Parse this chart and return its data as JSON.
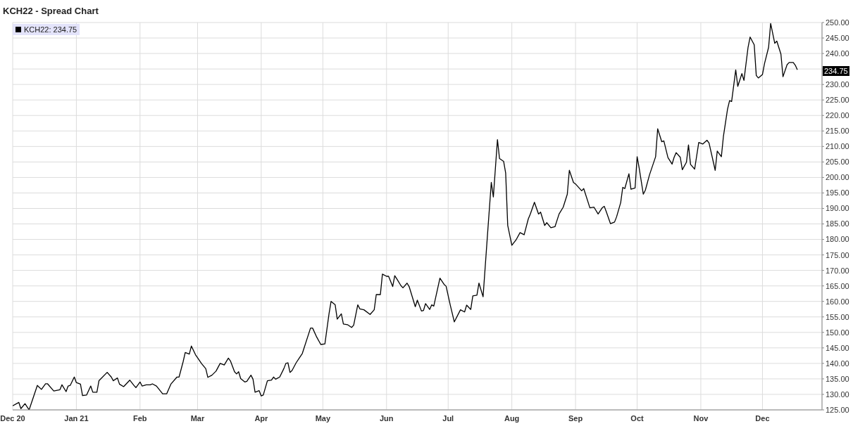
{
  "chart_data": {
    "type": "line",
    "title": "KCH22 - Spread Chart",
    "xlim": [
      "2020-12-01",
      "2021-12-30"
    ],
    "xticks": [
      {
        "value": "2020-12-01",
        "label": "Dec 20"
      },
      {
        "value": "2021-01-01",
        "label": "Jan 21"
      },
      {
        "value": "2021-02-01",
        "label": "Feb"
      },
      {
        "value": "2021-03-01",
        "label": "Mar"
      },
      {
        "value": "2021-04-01",
        "label": "Apr"
      },
      {
        "value": "2021-05-01",
        "label": "May"
      },
      {
        "value": "2021-06-01",
        "label": "Jun"
      },
      {
        "value": "2021-07-01",
        "label": "Jul"
      },
      {
        "value": "2021-08-01",
        "label": "Aug"
      },
      {
        "value": "2021-09-01",
        "label": "Sep"
      },
      {
        "value": "2021-10-01",
        "label": "Oct"
      },
      {
        "value": "2021-11-01",
        "label": "Nov"
      },
      {
        "value": "2021-12-01",
        "label": "Dec"
      }
    ],
    "ylim": [
      125,
      250
    ],
    "yticks": [
      {
        "value": 125,
        "label": "125.00"
      },
      {
        "value": 130,
        "label": "130.00"
      },
      {
        "value": 135,
        "label": "135.00"
      },
      {
        "value": 140,
        "label": "140.00"
      },
      {
        "value": 145,
        "label": "145.00"
      },
      {
        "value": 150,
        "label": "150.00"
      },
      {
        "value": 155,
        "label": "155.00"
      },
      {
        "value": 160,
        "label": "160.00"
      },
      {
        "value": 165,
        "label": "165.00"
      },
      {
        "value": 170,
        "label": "170.00"
      },
      {
        "value": 175,
        "label": "175.00"
      },
      {
        "value": 180,
        "label": "180.00"
      },
      {
        "value": 185,
        "label": "185.00"
      },
      {
        "value": 190,
        "label": "190.00"
      },
      {
        "value": 195,
        "label": "195.00"
      },
      {
        "value": 200,
        "label": "200.00"
      },
      {
        "value": 205,
        "label": "205.00"
      },
      {
        "value": 210,
        "label": "210.00"
      },
      {
        "value": 215,
        "label": "215.00"
      },
      {
        "value": 220,
        "label": "220.00"
      },
      {
        "value": 225,
        "label": "225.00"
      },
      {
        "value": 230,
        "label": "230.00"
      },
      {
        "value": 235,
        "label": null
      },
      {
        "value": 240,
        "label": "240.00"
      },
      {
        "value": 245,
        "label": "245.00"
      },
      {
        "value": 250,
        "label": "250.00"
      }
    ],
    "grid": true,
    "legend": "top left",
    "marker": "none",
    "line_style": "solid",
    "annotations": [
      "234.75"
    ],
    "series": [
      {
        "name": "KCH22: 234.75",
        "color": "#000000",
        "x": [
          "2020-12-01",
          "2020-12-04",
          "2020-12-05",
          "2020-12-07",
          "2020-12-09",
          "2020-12-13",
          "2020-12-15",
          "2020-12-17",
          "2020-12-18",
          "2020-12-21",
          "2020-12-24",
          "2020-12-25",
          "2020-12-27",
          "2020-12-28",
          "2020-12-29",
          "2020-12-31",
          "2021-01-01",
          "2021-01-03",
          "2021-01-04",
          "2021-01-06",
          "2021-01-08",
          "2021-01-09",
          "2021-01-11",
          "2021-01-12",
          "2021-01-16",
          "2021-01-18",
          "2021-01-19",
          "2021-01-21",
          "2021-01-22",
          "2021-01-24",
          "2021-01-27",
          "2021-01-29",
          "2021-01-30",
          "2021-02-01",
          "2021-02-02",
          "2021-02-04",
          "2021-02-06",
          "2021-02-07",
          "2021-02-09",
          "2021-02-12",
          "2021-02-14",
          "2021-02-16",
          "2021-02-19",
          "2021-02-20",
          "2021-02-22",
          "2021-02-23",
          "2021-02-25",
          "2021-02-26",
          "2021-02-28",
          "2021-03-03",
          "2021-03-05",
          "2021-03-06",
          "2021-03-08",
          "2021-03-10",
          "2021-03-12",
          "2021-03-14",
          "2021-03-16",
          "2021-03-17",
          "2021-03-19",
          "2021-03-20",
          "2021-03-21",
          "2021-03-22",
          "2021-03-24",
          "2021-03-25",
          "2021-03-27",
          "2021-03-28",
          "2021-03-29",
          "2021-03-31",
          "2021-04-01",
          "2021-04-02",
          "2021-04-04",
          "2021-04-06",
          "2021-04-07",
          "2021-04-08",
          "2021-04-10",
          "2021-04-12",
          "2021-04-13",
          "2021-04-14",
          "2021-04-15",
          "2021-04-16",
          "2021-04-18",
          "2021-04-21",
          "2021-04-25",
          "2021-04-26",
          "2021-04-28",
          "2021-04-30",
          "2021-05-02",
          "2021-05-04",
          "2021-05-05",
          "2021-05-07",
          "2021-05-08",
          "2021-05-10",
          "2021-05-11",
          "2021-05-13",
          "2021-05-15",
          "2021-05-16",
          "2021-05-18",
          "2021-05-19",
          "2021-05-21",
          "2021-05-24",
          "2021-05-26",
          "2021-05-27",
          "2021-05-29",
          "2021-05-30",
          "2021-06-01",
          "2021-06-02",
          "2021-06-04",
          "2021-06-05",
          "2021-06-06",
          "2021-06-08",
          "2021-06-09",
          "2021-06-11",
          "2021-06-12",
          "2021-06-15",
          "2021-06-16",
          "2021-06-18",
          "2021-06-19",
          "2021-06-20",
          "2021-06-22",
          "2021-06-23",
          "2021-06-24",
          "2021-06-27",
          "2021-06-29",
          "2021-06-30",
          "2021-07-02",
          "2021-07-04",
          "2021-07-07",
          "2021-07-09",
          "2021-07-10",
          "2021-07-12",
          "2021-07-13",
          "2021-07-15",
          "2021-07-16",
          "2021-07-18",
          "2021-07-20",
          "2021-07-22",
          "2021-07-23",
          "2021-07-25",
          "2021-07-26",
          "2021-07-28",
          "2021-07-29",
          "2021-07-30",
          "2021-08-01",
          "2021-08-03",
          "2021-08-05",
          "2021-08-07",
          "2021-08-09",
          "2021-08-10",
          "2021-08-12",
          "2021-08-14",
          "2021-08-15",
          "2021-08-17",
          "2021-08-18",
          "2021-08-20",
          "2021-08-22",
          "2021-08-24",
          "2021-08-26",
          "2021-08-28",
          "2021-08-29",
          "2021-08-31",
          "2021-09-01",
          "2021-09-04",
          "2021-09-05",
          "2021-09-08",
          "2021-09-10",
          "2021-09-12",
          "2021-09-14",
          "2021-09-15",
          "2021-09-16",
          "2021-09-18",
          "2021-09-20",
          "2021-09-21",
          "2021-09-23",
          "2021-09-24",
          "2021-09-25",
          "2021-09-27",
          "2021-09-28",
          "2021-09-30",
          "2021-10-01",
          "2021-10-02",
          "2021-10-04",
          "2021-10-05",
          "2021-10-07",
          "2021-10-10",
          "2021-10-11",
          "2021-10-13",
          "2021-10-14",
          "2021-10-16",
          "2021-10-18",
          "2021-10-19",
          "2021-10-20",
          "2021-10-22",
          "2021-10-23",
          "2021-10-25",
          "2021-10-26",
          "2021-10-27",
          "2021-10-29",
          "2021-10-31",
          "2021-11-02",
          "2021-11-04",
          "2021-11-05",
          "2021-11-08",
          "2021-11-09",
          "2021-11-11",
          "2021-11-12",
          "2021-11-14",
          "2021-11-15",
          "2021-11-16",
          "2021-11-18",
          "2021-11-19",
          "2021-11-21",
          "2021-11-22",
          "2021-11-24",
          "2021-11-25",
          "2021-11-27",
          "2021-11-28",
          "2021-11-29",
          "2021-12-01",
          "2021-12-02",
          "2021-12-04",
          "2021-12-05",
          "2021-12-07",
          "2021-12-08",
          "2021-12-10",
          "2021-12-11",
          "2021-12-13",
          "2021-12-14",
          "2021-12-16",
          "2021-12-17",
          "2021-12-18"
        ],
        "values": [
          126.3,
          127.4,
          125.4,
          127.0,
          125.0,
          132.9,
          131.6,
          133.4,
          133.4,
          131.1,
          131.5,
          133.1,
          130.9,
          132.7,
          132.9,
          135.6,
          133.8,
          133.3,
          129.6,
          129.8,
          132.7,
          130.7,
          130.7,
          134.4,
          137.1,
          135.6,
          134.4,
          135.3,
          133.3,
          132.5,
          134.6,
          132.9,
          132.2,
          134.0,
          132.7,
          133.1,
          133.1,
          133.4,
          132.7,
          130.2,
          130.2,
          133.3,
          135.6,
          135.6,
          140.6,
          143.5,
          143.0,
          145.6,
          142.8,
          139.9,
          138.3,
          135.5,
          136.2,
          137.5,
          140.0,
          139.5,
          141.7,
          140.8,
          137.3,
          136.6,
          137.3,
          135.1,
          134.0,
          134.2,
          136.2,
          134.9,
          130.7,
          131.2,
          129.5,
          129.8,
          134.4,
          134.6,
          135.6,
          134.9,
          135.6,
          138.3,
          140.0,
          140.2,
          137.1,
          137.7,
          140.2,
          143.2,
          151.4,
          151.4,
          148.5,
          146.1,
          146.3,
          156.0,
          160.0,
          158.9,
          154.3,
          156.0,
          152.7,
          152.5,
          151.6,
          152.3,
          158.9,
          157.6,
          157.3,
          155.8,
          157.3,
          162.2,
          162.2,
          168.8,
          168.1,
          168.1,
          164.8,
          168.3,
          167.3,
          165.1,
          164.4,
          165.9,
          164.8,
          158.3,
          160.4,
          156.9,
          157.1,
          159.3,
          157.4,
          158.9,
          158.5,
          167.5,
          165.5,
          164.9,
          158.9,
          153.4,
          157.3,
          156.6,
          158.8,
          157.4,
          161.8,
          162.0,
          165.9,
          161.5,
          180.1,
          198.4,
          193.7,
          212.2,
          206.1,
          205.2,
          201.4,
          184.5,
          178.1,
          179.8,
          182.2,
          181.5,
          186.6,
          188.2,
          192.0,
          188.2,
          188.8,
          184.5,
          185.4,
          183.8,
          184.1,
          188.2,
          190.4,
          194.6,
          202.3,
          198.4,
          197.9,
          195.7,
          196.4,
          190.2,
          190.4,
          188.2,
          190.2,
          190.7,
          188.9,
          185.1,
          185.6,
          187.3,
          191.9,
          196.8,
          196.4,
          201.2,
          196.2,
          196.6,
          206.7,
          203.0,
          194.6,
          195.9,
          200.8,
          206.7,
          215.7,
          211.5,
          211.8,
          206.4,
          204.3,
          206.5,
          208.0,
          206.5,
          202.5,
          204.9,
          210.5,
          204.2,
          202.7,
          211.3,
          210.8,
          212.0,
          211.1,
          202.3,
          208.5,
          206.7,
          213.2,
          222.0,
          224.8,
          224.5,
          234.7,
          229.4,
          233.5,
          231.3,
          242.0,
          245.3,
          242.8,
          232.9,
          232.1,
          233.2,
          236.7,
          242.0,
          249.7,
          243.3,
          244.0,
          239.8,
          232.5,
          236.4,
          237.1,
          237.1,
          236.2,
          234.75
        ]
      }
    ]
  }
}
